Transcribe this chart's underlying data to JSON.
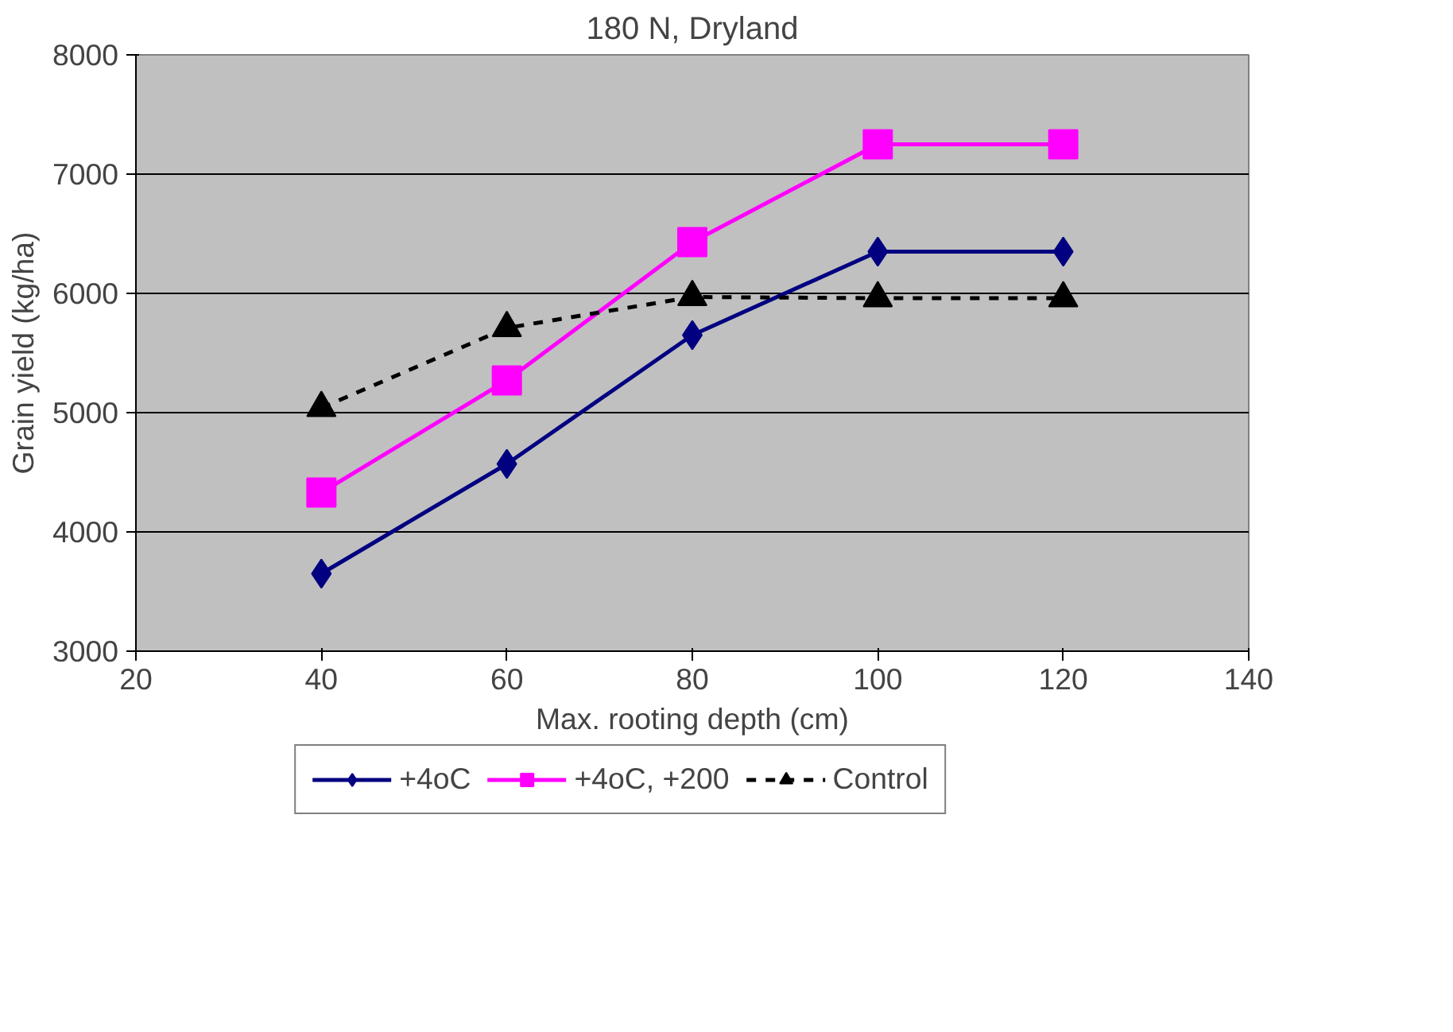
{
  "chart_data": {
    "type": "line",
    "title": "180 N, Dryland",
    "xlabel": "Max. rooting depth (cm)",
    "ylabel": "Grain yield (kg/ha)",
    "x": [
      40,
      60,
      80,
      100,
      120
    ],
    "series": [
      {
        "name": "+4oC",
        "color": "#000080",
        "values": [
          3650,
          4570,
          5650,
          6350,
          6350
        ],
        "marker": "diamond",
        "line_style": "solid"
      },
      {
        "name": "+4oC, +200",
        "color": "#ff00ff",
        "values": [
          4330,
          5270,
          6430,
          7250,
          7250
        ],
        "marker": "square",
        "line_style": "solid"
      },
      {
        "name": "Control",
        "color": "#000000",
        "values": [
          5040,
          5710,
          5970,
          5960,
          5960
        ],
        "marker": "triangle",
        "line_style": "dashed"
      }
    ],
    "xlim": [
      20,
      140
    ],
    "xticks": [
      20,
      40,
      60,
      80,
      100,
      120,
      140
    ],
    "ylim": [
      3000,
      8000
    ],
    "yticks": [
      3000,
      4000,
      5000,
      6000,
      7000,
      8000
    ],
    "grid": "y",
    "legend": "bottom"
  }
}
